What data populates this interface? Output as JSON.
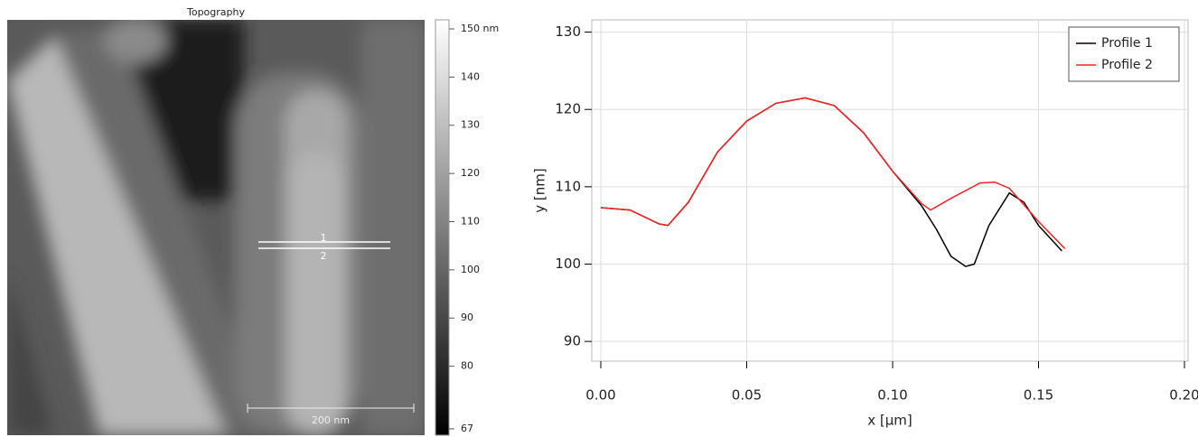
{
  "topography": {
    "title": "Topography",
    "line_labels": [
      "1",
      "2"
    ],
    "scale_bar": "200 nm",
    "colorbar": {
      "lim": [
        67,
        150
      ],
      "ticks": [
        {
          "value": 150,
          "label": "150 nm"
        },
        140,
        130,
        120,
        110,
        100,
        90,
        80,
        67
      ]
    }
  },
  "chart_data": {
    "type": "line",
    "xlabel": "x [µm]",
    "ylabel": "y [nm]",
    "xlim": [
      0,
      0.2
    ],
    "xticks": [
      {
        "value": 0,
        "label": "0.00"
      },
      {
        "value": 0.05,
        "label": "0.05"
      },
      {
        "value": 0.1,
        "label": "0.10"
      },
      {
        "value": 0.15,
        "label": "0.15"
      },
      {
        "value": 0.2,
        "label": "0.20"
      }
    ],
    "ylim": [
      88.5,
      131
    ],
    "yticks": [
      90,
      100,
      110,
      120,
      130
    ],
    "grid": true,
    "legend": "upper right",
    "series": [
      {
        "name": "Profile 1",
        "color": "#000000",
        "x": [
          0,
          0.01,
          0.02,
          0.023,
          0.03,
          0.04,
          0.05,
          0.06,
          0.07,
          0.08,
          0.09,
          0.1,
          0.11,
          0.115,
          0.12,
          0.125,
          0.128,
          0.133,
          0.14,
          0.145,
          0.15,
          0.158
        ],
        "values": [
          107.3,
          107.0,
          105.2,
          105.0,
          108.0,
          114.5,
          118.5,
          120.8,
          121.5,
          120.5,
          117.0,
          112.0,
          107.5,
          104.5,
          101.0,
          99.7,
          100.0,
          105.0,
          109.2,
          108.0,
          105.0,
          101.7
        ]
      },
      {
        "name": "Profile 2",
        "color": "#ff2020",
        "x": [
          0,
          0.01,
          0.02,
          0.023,
          0.03,
          0.04,
          0.05,
          0.06,
          0.07,
          0.08,
          0.09,
          0.1,
          0.11,
          0.113,
          0.12,
          0.13,
          0.135,
          0.14,
          0.15,
          0.159
        ],
        "values": [
          107.3,
          107.0,
          105.2,
          105.0,
          108.0,
          114.5,
          118.5,
          120.8,
          121.5,
          120.5,
          117.0,
          112.0,
          107.8,
          107.0,
          108.5,
          110.5,
          110.6,
          109.8,
          105.5,
          102.0
        ]
      }
    ]
  }
}
